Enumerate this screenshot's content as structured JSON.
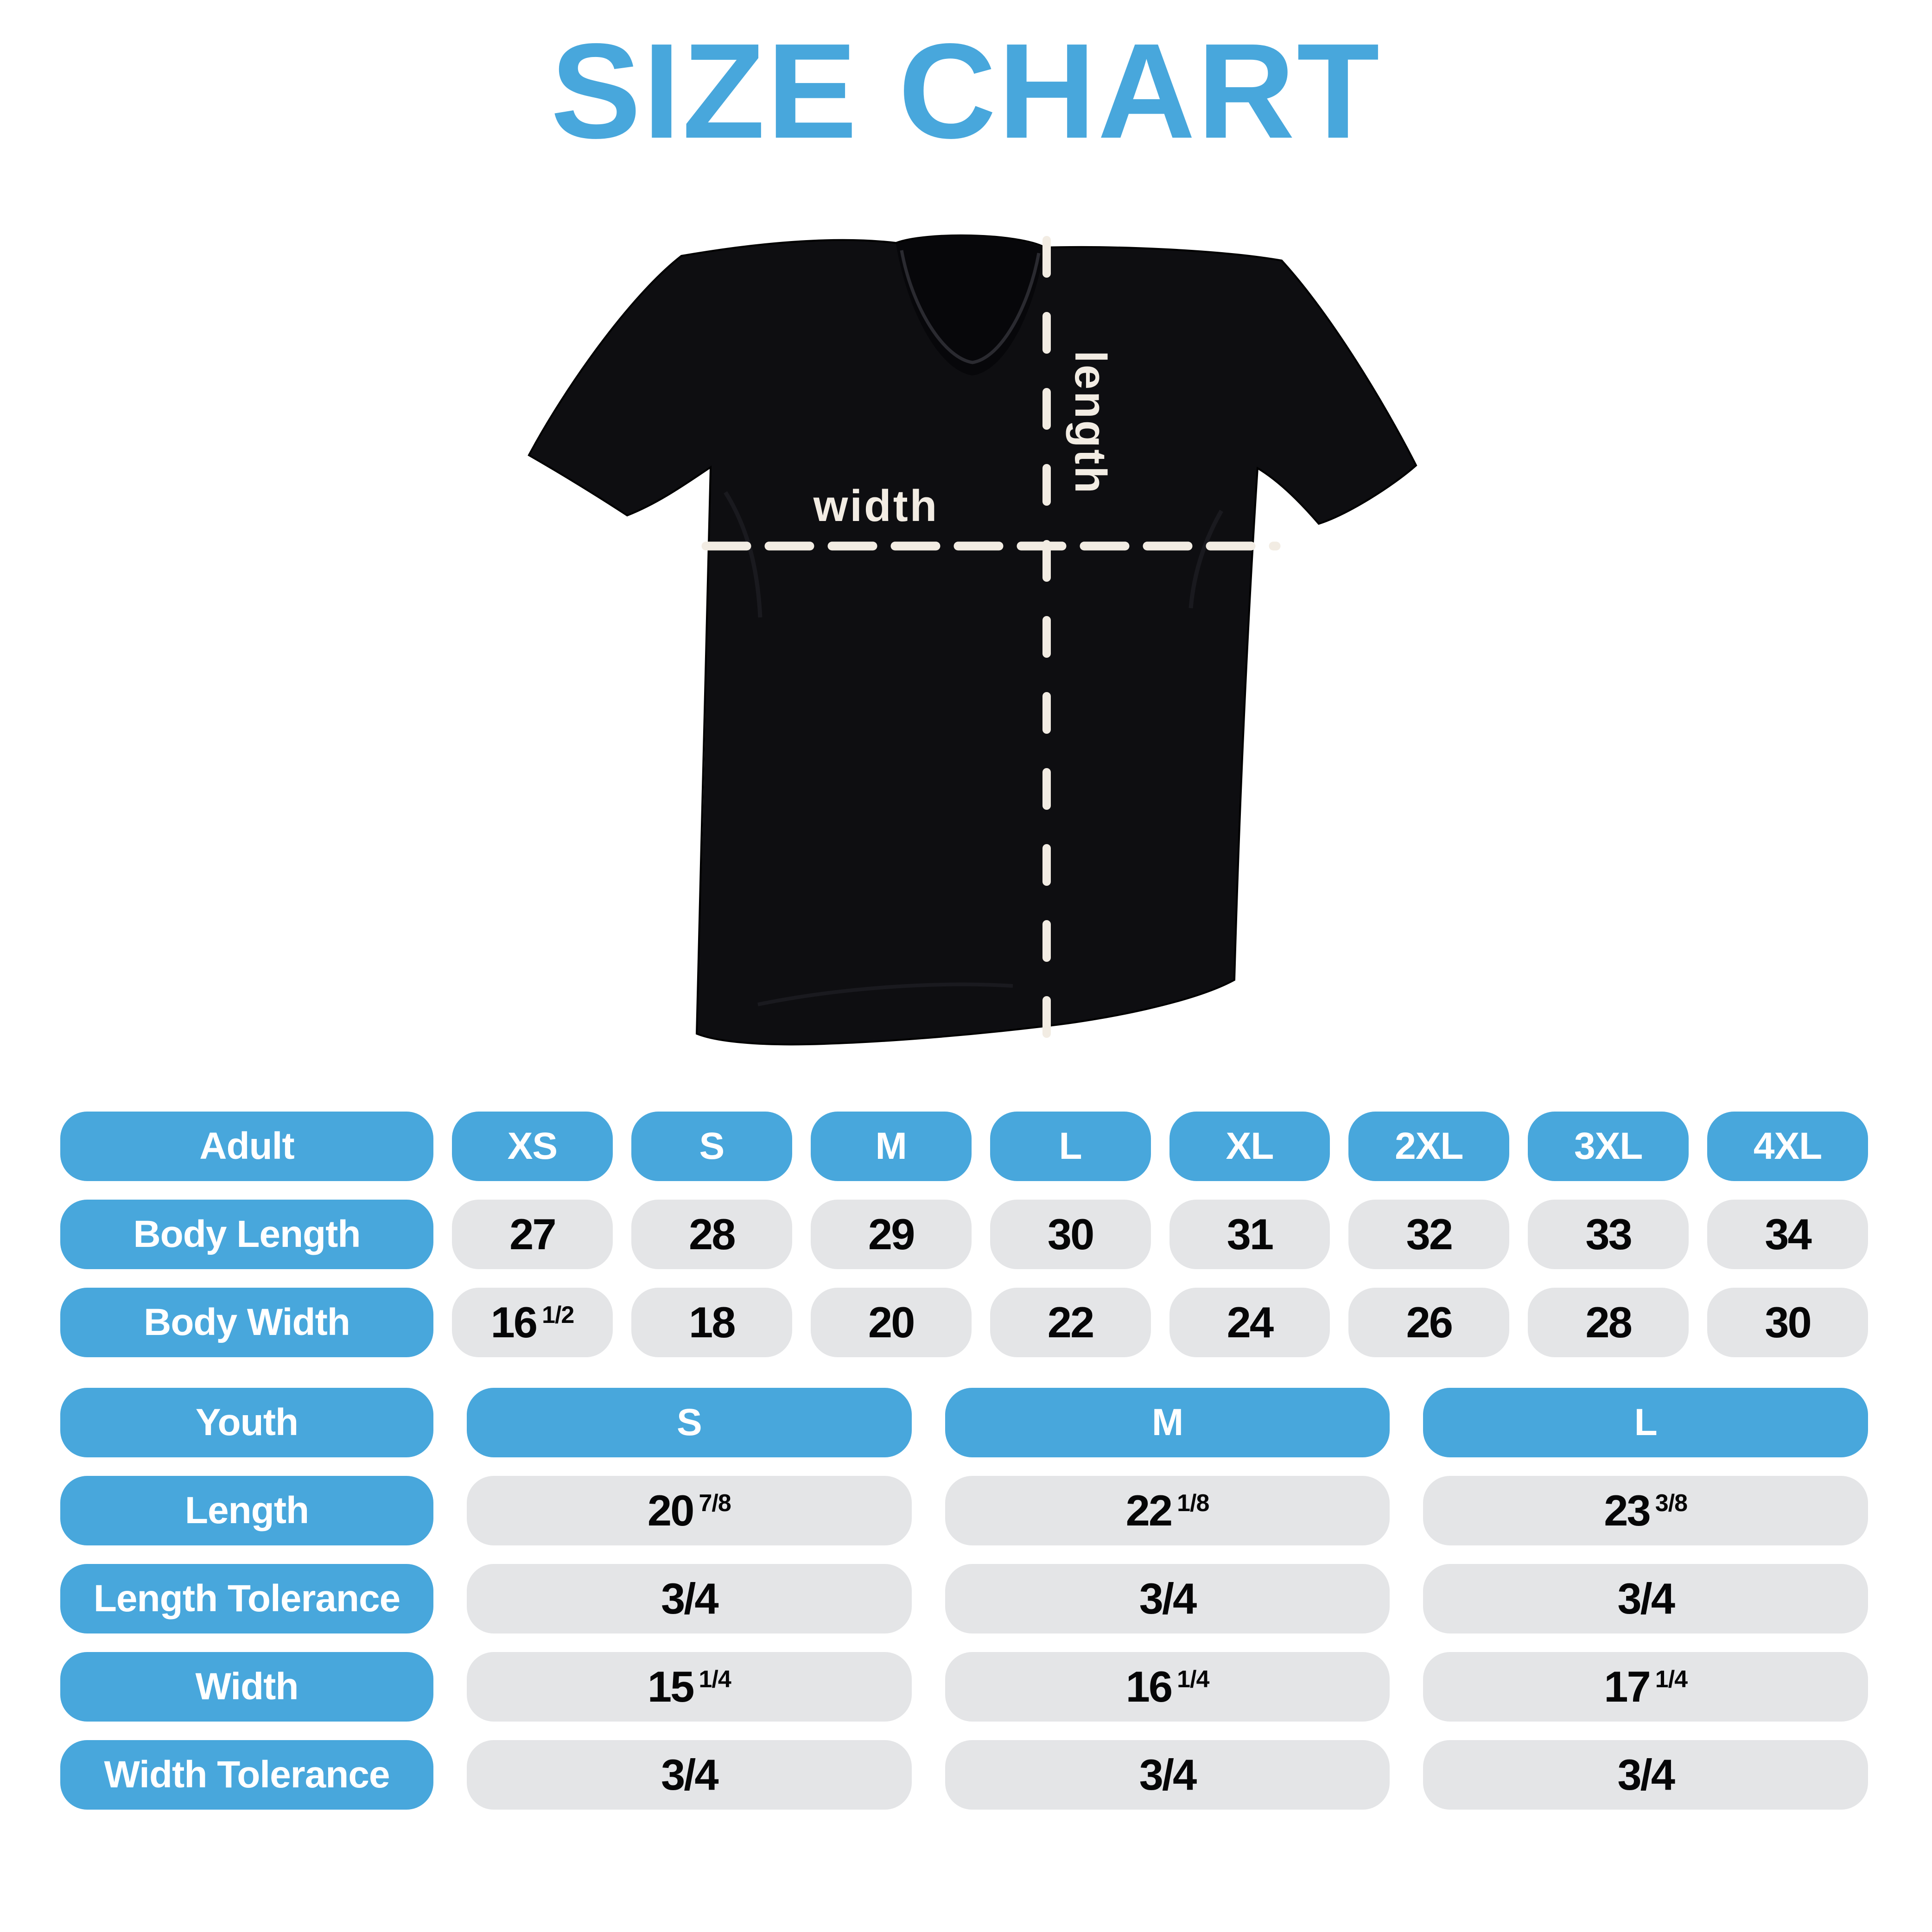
{
  "title": "SIZE CHART",
  "colors": {
    "accent": "#48A7DC",
    "pill_gray": "#E4E5E7",
    "value_black": "#060607",
    "shirt_black": "#0E0E11",
    "measure_cream": "#F2ECE3"
  },
  "diagram": {
    "width_label": "width",
    "length_label": "length"
  },
  "adult_table": {
    "header": {
      "label": "Adult",
      "sizes": [
        "XS",
        "S",
        "M",
        "L",
        "XL",
        "2XL",
        "3XL",
        "4XL"
      ]
    },
    "rows": [
      {
        "label": "Body Length",
        "values": [
          {
            "main": "27"
          },
          {
            "main": "28"
          },
          {
            "main": "29"
          },
          {
            "main": "30"
          },
          {
            "main": "31"
          },
          {
            "main": "32"
          },
          {
            "main": "33"
          },
          {
            "main": "34"
          }
        ]
      },
      {
        "label": "Body Width",
        "values": [
          {
            "main": "16",
            "frac": "1/2"
          },
          {
            "main": "18"
          },
          {
            "main": "20"
          },
          {
            "main": "22"
          },
          {
            "main": "24"
          },
          {
            "main": "26"
          },
          {
            "main": "28"
          },
          {
            "main": "30"
          }
        ]
      }
    ]
  },
  "youth_table": {
    "header": {
      "label": "Youth",
      "sizes": [
        "S",
        "M",
        "L"
      ]
    },
    "rows": [
      {
        "label": "Length",
        "values": [
          {
            "main": "20",
            "frac": "7/8"
          },
          {
            "main": "22",
            "frac": "1/8"
          },
          {
            "main": "23",
            "frac": "3/8"
          }
        ]
      },
      {
        "label": "Length Tolerance",
        "values": [
          {
            "main": "3/4"
          },
          {
            "main": "3/4"
          },
          {
            "main": "3/4"
          }
        ]
      },
      {
        "label": "Width",
        "values": [
          {
            "main": "15",
            "frac": "1/4"
          },
          {
            "main": "16",
            "frac": "1/4"
          },
          {
            "main": "17",
            "frac": "1/4"
          }
        ]
      },
      {
        "label": "Width Tolerance",
        "values": [
          {
            "main": "3/4"
          },
          {
            "main": "3/4"
          },
          {
            "main": "3/4"
          }
        ]
      }
    ]
  }
}
